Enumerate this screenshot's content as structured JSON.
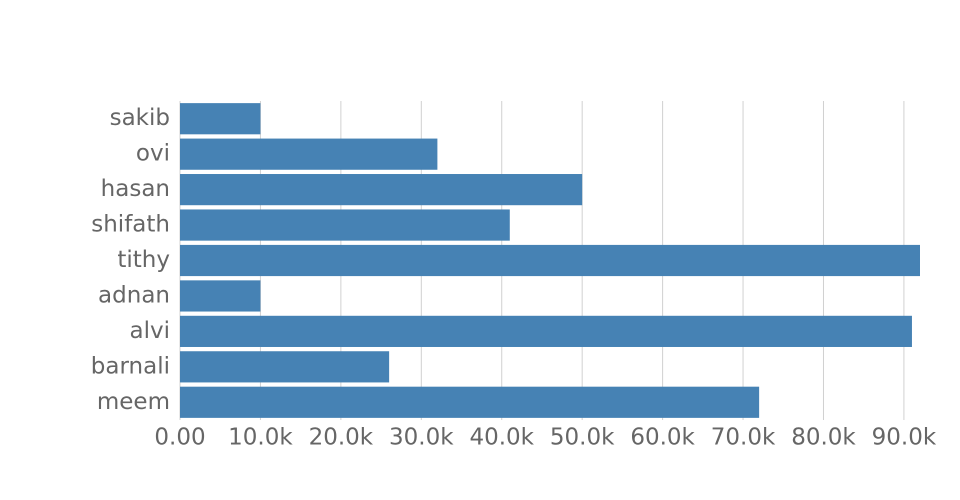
{
  "chart_data": {
    "type": "bar",
    "orientation": "horizontal",
    "categories": [
      "sakib",
      "ovi",
      "hasan",
      "shifath",
      "tithy",
      "adnan",
      "alvi",
      "barnali",
      "meem"
    ],
    "values": [
      10000,
      32000,
      50000,
      41000,
      92000,
      10000,
      91000,
      26000,
      72000
    ],
    "color": "#4682b4",
    "xlim": [
      0,
      92000
    ],
    "xticks": [
      {
        "value": 0,
        "label": "0.00"
      },
      {
        "value": 10000,
        "label": "10.0k"
      },
      {
        "value": 20000,
        "label": "20.0k"
      },
      {
        "value": 30000,
        "label": "30.0k"
      },
      {
        "value": 40000,
        "label": "40.0k"
      },
      {
        "value": 50000,
        "label": "50.0k"
      },
      {
        "value": 60000,
        "label": "60.0k"
      },
      {
        "value": 70000,
        "label": "70.0k"
      },
      {
        "value": 80000,
        "label": "80.0k"
      },
      {
        "value": 90000,
        "label": "90.0k"
      }
    ],
    "grid": true
  }
}
